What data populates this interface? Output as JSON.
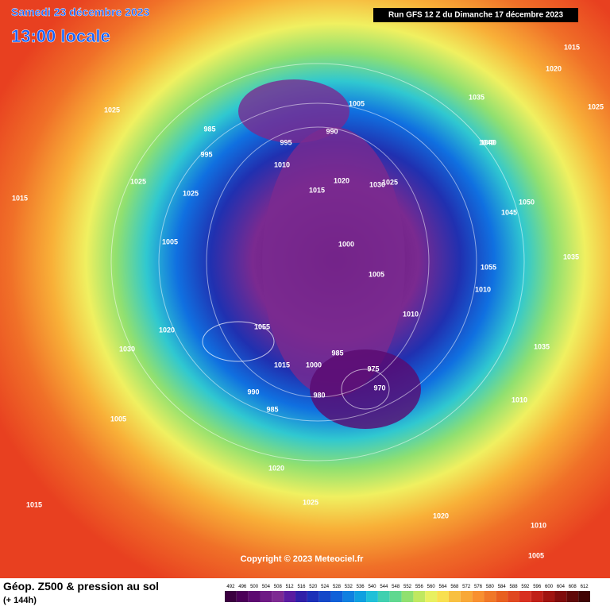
{
  "header": {
    "date": "Samedi 23 décembre 2023",
    "time": "13:00 locale",
    "run": "Run GFS 12 Z du Dimanche 17 décembre 2023"
  },
  "footer": {
    "title": "Géop. Z500 & pression au sol",
    "lead": "(+ 144h)",
    "copyright": "Copyright © 2023 Meteociel.fr"
  },
  "scale": {
    "values": [
      492,
      496,
      500,
      504,
      508,
      512,
      516,
      520,
      524,
      528,
      532,
      536,
      540,
      544,
      548,
      552,
      556,
      560,
      564,
      568,
      572,
      576,
      580,
      584,
      588,
      592,
      596,
      600,
      604,
      608,
      612
    ],
    "colors": [
      "#3b0040",
      "#4b0058",
      "#5c0a70",
      "#6e1a84",
      "#7d2a92",
      "#5a1ca0",
      "#3020a8",
      "#1c30b8",
      "#1448c8",
      "#1060d8",
      "#1080e0",
      "#10a0e0",
      "#20c0d8",
      "#40d0b0",
      "#60d890",
      "#90e070",
      "#c0e860",
      "#e8f060",
      "#f8e050",
      "#f8c040",
      "#f8a838",
      "#f89030",
      "#f07828",
      "#e86020",
      "#e04820",
      "#d83020",
      "#c02018",
      "#a01410",
      "#800c0c",
      "#600808",
      "#400404"
    ]
  },
  "isobars": [
    "1015",
    "1020",
    "1025",
    "1035",
    "1040",
    "1050",
    "1015",
    "1010",
    "1005",
    "985",
    "980",
    "970",
    "1000",
    "1005",
    "990",
    "995",
    "1010",
    "1015",
    "1020",
    "1030",
    "1025",
    "1025",
    "1035",
    "1005",
    "1000",
    "975",
    "985",
    "990",
    "995",
    "1005",
    "1010",
    "1020",
    "1025",
    "1015",
    "1010",
    "1005",
    "1015",
    "1035",
    "1045",
    "1055",
    "1010",
    "1020",
    "1030",
    "1040",
    "1055",
    "985",
    "1025",
    "1025",
    "1020"
  ]
}
